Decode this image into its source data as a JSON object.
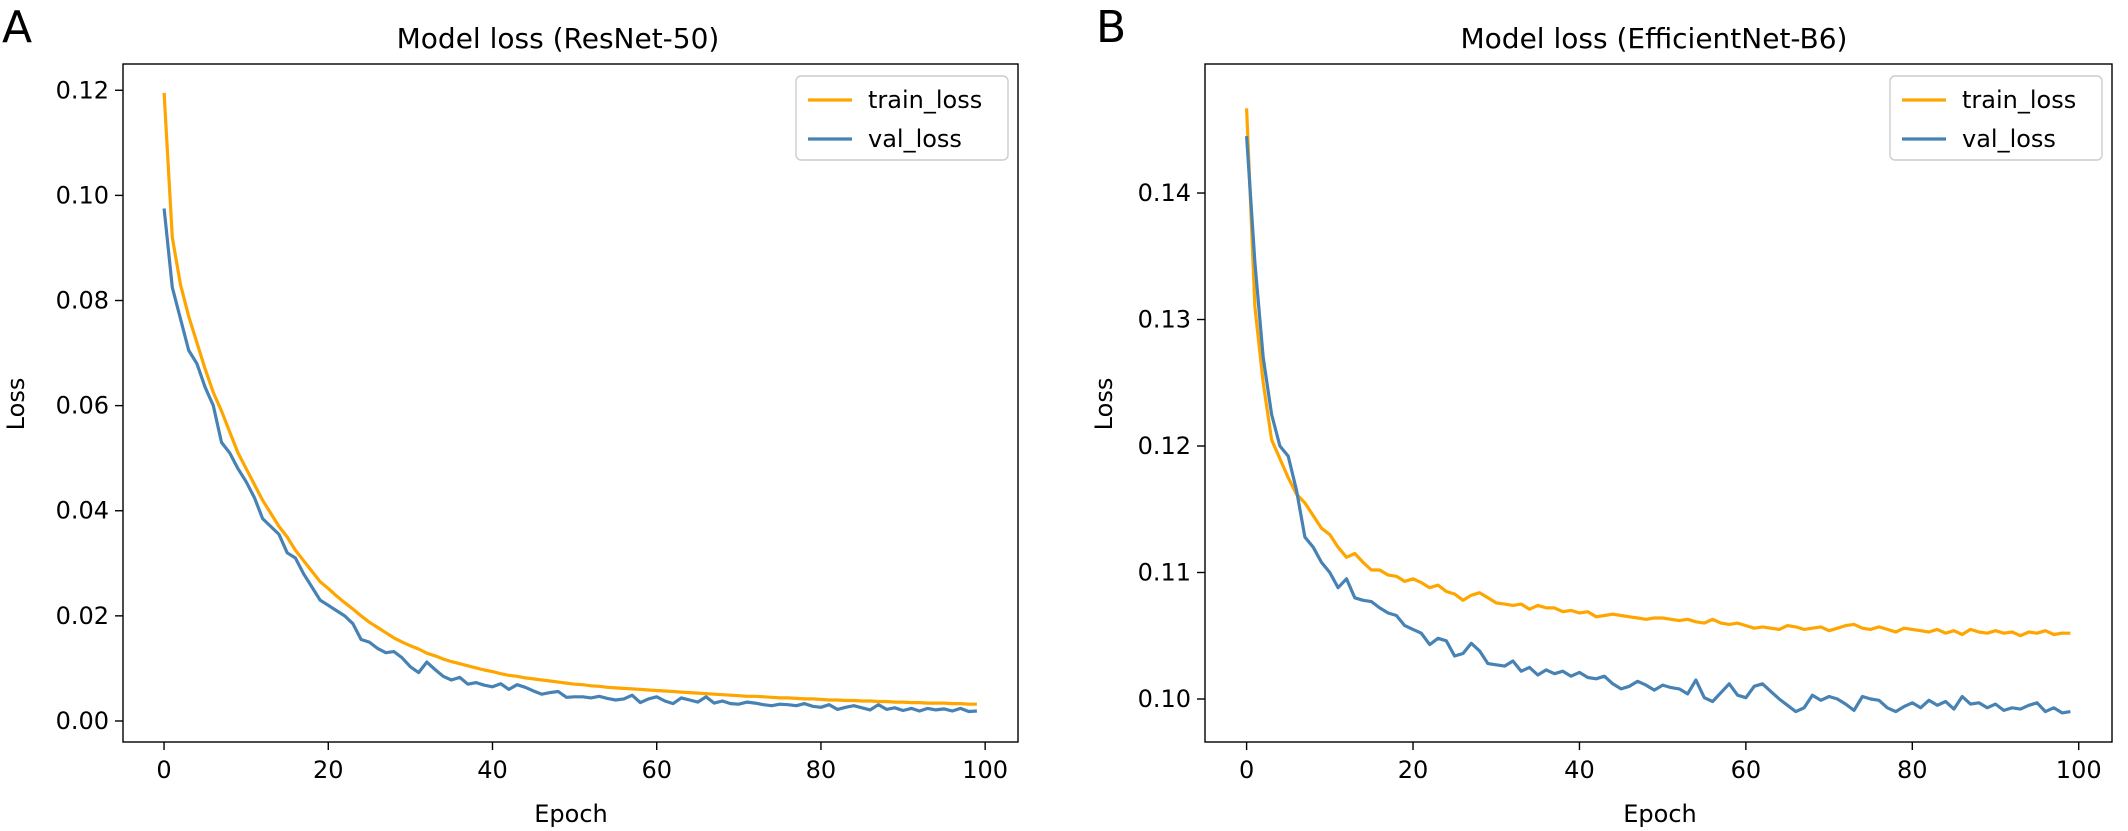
{
  "panels": [
    {
      "letter": "A",
      "chart_data": {
        "type": "line",
        "title": "Model loss (ResNet-50)",
        "xlabel": "Epoch",
        "ylabel": "Loss",
        "xlim": [
          -5,
          104
        ],
        "ylim": [
          -0.004,
          0.125
        ],
        "xticks": [
          0,
          20,
          40,
          60,
          80,
          100
        ],
        "xtick_labels": [
          "0",
          "20",
          "40",
          "60",
          "80",
          "100"
        ],
        "yticks": [
          0.0,
          0.02,
          0.04,
          0.06,
          0.08,
          0.1,
          0.12
        ],
        "ytick_labels": [
          "0.00",
          "0.02",
          "0.04",
          "0.06",
          "0.08",
          "0.10",
          "0.12"
        ],
        "grid": false,
        "legend": "upper-right",
        "x": [
          0,
          1,
          2,
          3,
          4,
          5,
          6,
          7,
          8,
          9,
          10,
          11,
          12,
          13,
          14,
          15,
          16,
          17,
          18,
          19,
          20,
          21,
          22,
          23,
          24,
          25,
          26,
          27,
          28,
          29,
          30,
          31,
          32,
          33,
          34,
          35,
          36,
          37,
          38,
          39,
          40,
          41,
          42,
          43,
          44,
          45,
          46,
          47,
          48,
          49,
          50,
          51,
          52,
          53,
          54,
          55,
          56,
          57,
          58,
          59,
          60,
          61,
          62,
          63,
          64,
          65,
          66,
          67,
          68,
          69,
          70,
          71,
          72,
          73,
          74,
          75,
          76,
          77,
          78,
          79,
          80,
          81,
          82,
          83,
          84,
          85,
          86,
          87,
          88,
          89,
          90,
          91,
          92,
          93,
          94,
          95,
          96,
          97,
          98,
          99
        ],
        "series": [
          {
            "name": "train_loss",
            "color": "#FFA500",
            "values": [
              0.1195,
              0.092,
              0.083,
              0.077,
              0.072,
              0.067,
              0.0625,
              0.059,
              0.055,
              0.051,
              0.048,
              0.045,
              0.042,
              0.0395,
              0.037,
              0.035,
              0.0325,
              0.0305,
              0.0285,
              0.0265,
              0.0252,
              0.0238,
              0.0225,
              0.0213,
              0.02,
              0.0188,
              0.0178,
              0.0168,
              0.0158,
              0.015,
              0.0143,
              0.0137,
              0.0129,
              0.0124,
              0.0118,
              0.0113,
              0.0109,
              0.0105,
              0.0101,
              0.0097,
              0.0094,
              0.009,
              0.0087,
              0.0085,
              0.0082,
              0.008,
              0.0078,
              0.0076,
              0.0074,
              0.0072,
              0.007,
              0.0069,
              0.0067,
              0.0066,
              0.0064,
              0.0063,
              0.0062,
              0.0061,
              0.006,
              0.0059,
              0.0058,
              0.0057,
              0.0056,
              0.0055,
              0.0054,
              0.0053,
              0.0052,
              0.0051,
              0.005,
              0.0049,
              0.0048,
              0.0047,
              0.0047,
              0.0046,
              0.0045,
              0.0044,
              0.0044,
              0.0043,
              0.0042,
              0.0042,
              0.0041,
              0.004,
              0.004,
              0.0039,
              0.0039,
              0.0038,
              0.0038,
              0.0037,
              0.0037,
              0.0036,
              0.0036,
              0.0035,
              0.0035,
              0.0034,
              0.0034,
              0.0034,
              0.0033,
              0.0033,
              0.0032,
              0.0032
            ]
          },
          {
            "name": "val_loss",
            "color": "#4682B4",
            "values": [
              0.0975,
              0.0825,
              0.0765,
              0.0705,
              0.068,
              0.0635,
              0.06,
              0.053,
              0.051,
              0.048,
              0.0455,
              0.0425,
              0.0385,
              0.037,
              0.0355,
              0.032,
              0.031,
              0.028,
              0.0255,
              0.023,
              0.022,
              0.021,
              0.02,
              0.0185,
              0.0155,
              0.015,
              0.0138,
              0.013,
              0.0132,
              0.012,
              0.0103,
              0.0092,
              0.0112,
              0.0098,
              0.0085,
              0.0078,
              0.0083,
              0.007,
              0.0073,
              0.0068,
              0.0065,
              0.0071,
              0.006,
              0.0069,
              0.0064,
              0.0057,
              0.0051,
              0.0054,
              0.0056,
              0.0045,
              0.0046,
              0.0046,
              0.0044,
              0.0047,
              0.0043,
              0.004,
              0.0042,
              0.0049,
              0.0035,
              0.0042,
              0.0046,
              0.0038,
              0.0033,
              0.0044,
              0.004,
              0.0036,
              0.0046,
              0.0034,
              0.0038,
              0.0033,
              0.0032,
              0.0036,
              0.0034,
              0.0031,
              0.0029,
              0.0032,
              0.0031,
              0.0029,
              0.0033,
              0.0028,
              0.0026,
              0.0031,
              0.0022,
              0.0026,
              0.0029,
              0.0025,
              0.0021,
              0.0031,
              0.0022,
              0.0025,
              0.002,
              0.0024,
              0.0019,
              0.0024,
              0.0021,
              0.0023,
              0.0019,
              0.0024,
              0.0018,
              0.0019
            ]
          }
        ]
      }
    },
    {
      "letter": "B",
      "chart_data": {
        "type": "line",
        "title": "Model loss (EfficientNet-B6)",
        "xlabel": "Epoch",
        "ylabel": "Loss",
        "xlim": [
          -5,
          104
        ],
        "ylim": [
          0.0966,
          0.1502
        ],
        "xticks": [
          0,
          20,
          40,
          60,
          80,
          100
        ],
        "xtick_labels": [
          "0",
          "20",
          "40",
          "60",
          "80",
          "100"
        ],
        "yticks": [
          0.1,
          0.11,
          0.12,
          0.13,
          0.14
        ],
        "ytick_labels": [
          "0.10",
          "0.11",
          "0.12",
          "0.13",
          "0.14"
        ],
        "grid": false,
        "legend": "upper-right",
        "x": [
          0,
          1,
          2,
          3,
          4,
          5,
          6,
          7,
          8,
          9,
          10,
          11,
          12,
          13,
          14,
          15,
          16,
          17,
          18,
          19,
          20,
          21,
          22,
          23,
          24,
          25,
          26,
          27,
          28,
          29,
          30,
          31,
          32,
          33,
          34,
          35,
          36,
          37,
          38,
          39,
          40,
          41,
          42,
          43,
          44,
          45,
          46,
          47,
          48,
          49,
          50,
          51,
          52,
          53,
          54,
          55,
          56,
          57,
          58,
          59,
          60,
          61,
          62,
          63,
          64,
          65,
          66,
          67,
          68,
          69,
          70,
          71,
          72,
          73,
          74,
          75,
          76,
          77,
          78,
          79,
          80,
          81,
          82,
          83,
          84,
          85,
          86,
          87,
          88,
          89,
          90,
          91,
          92,
          93,
          94,
          95,
          96,
          97,
          98,
          99
        ],
        "series": [
          {
            "name": "train_loss",
            "color": "#FFA500",
            "values": [
              0.1467,
              0.131,
              0.125,
              0.1205,
              0.119,
              0.1175,
              0.1162,
              0.1155,
              0.1145,
              0.1135,
              0.113,
              0.112,
              0.1112,
              0.1115,
              0.1108,
              0.1102,
              0.1102,
              0.1098,
              0.1097,
              0.1093,
              0.1095,
              0.1092,
              0.1088,
              0.109,
              0.1085,
              0.1083,
              0.1078,
              0.1082,
              0.1084,
              0.108,
              0.1076,
              0.1075,
              0.1074,
              0.1075,
              0.1071,
              0.1074,
              0.1072,
              0.1072,
              0.1069,
              0.107,
              0.1068,
              0.1069,
              0.1065,
              0.1066,
              0.1067,
              0.1066,
              0.1065,
              0.1064,
              0.1063,
              0.1064,
              0.1064,
              0.1063,
              0.1062,
              0.1063,
              0.1061,
              0.106,
              0.1063,
              0.106,
              0.1059,
              0.106,
              0.1058,
              0.1056,
              0.1057,
              0.1056,
              0.1055,
              0.1058,
              0.1057,
              0.1055,
              0.1056,
              0.1057,
              0.1054,
              0.1056,
              0.1058,
              0.1059,
              0.1056,
              0.1055,
              0.1057,
              0.1055,
              0.1053,
              0.1056,
              0.1055,
              0.1054,
              0.1053,
              0.1055,
              0.1052,
              0.1054,
              0.1051,
              0.1055,
              0.1053,
              0.1052,
              0.1054,
              0.1052,
              0.1053,
              0.105,
              0.1053,
              0.1052,
              0.1054,
              0.1051,
              0.1052,
              0.1052
            ]
          },
          {
            "name": "val_loss",
            "color": "#4682B4",
            "values": [
              0.1445,
              0.1345,
              0.127,
              0.1225,
              0.12,
              0.1192,
              0.1165,
              0.1128,
              0.112,
              0.1108,
              0.11,
              0.1088,
              0.1095,
              0.108,
              0.1078,
              0.1077,
              0.1072,
              0.1068,
              0.1066,
              0.1058,
              0.1055,
              0.1052,
              0.1043,
              0.1048,
              0.1046,
              0.1034,
              0.1036,
              0.1044,
              0.1038,
              0.1028,
              0.1027,
              0.1026,
              0.103,
              0.1022,
              0.1025,
              0.1019,
              0.1023,
              0.102,
              0.1022,
              0.1018,
              0.1021,
              0.1017,
              0.1016,
              0.1018,
              0.1012,
              0.1008,
              0.101,
              0.1014,
              0.1011,
              0.1007,
              0.1011,
              0.1009,
              0.1008,
              0.1004,
              0.1015,
              0.1001,
              0.0998,
              0.1005,
              0.1012,
              0.1003,
              0.1001,
              0.101,
              0.1012,
              0.1006,
              0.1,
              0.0995,
              0.099,
              0.0993,
              0.1003,
              0.0999,
              0.1002,
              0.1,
              0.0996,
              0.0991,
              0.1002,
              0.1,
              0.0999,
              0.0993,
              0.099,
              0.0994,
              0.0997,
              0.0993,
              0.0999,
              0.0995,
              0.0998,
              0.0992,
              0.1002,
              0.0996,
              0.0997,
              0.0993,
              0.0996,
              0.0991,
              0.0993,
              0.0992,
              0.0995,
              0.0997,
              0.099,
              0.0993,
              0.0989,
              0.099
            ]
          }
        ]
      }
    }
  ]
}
